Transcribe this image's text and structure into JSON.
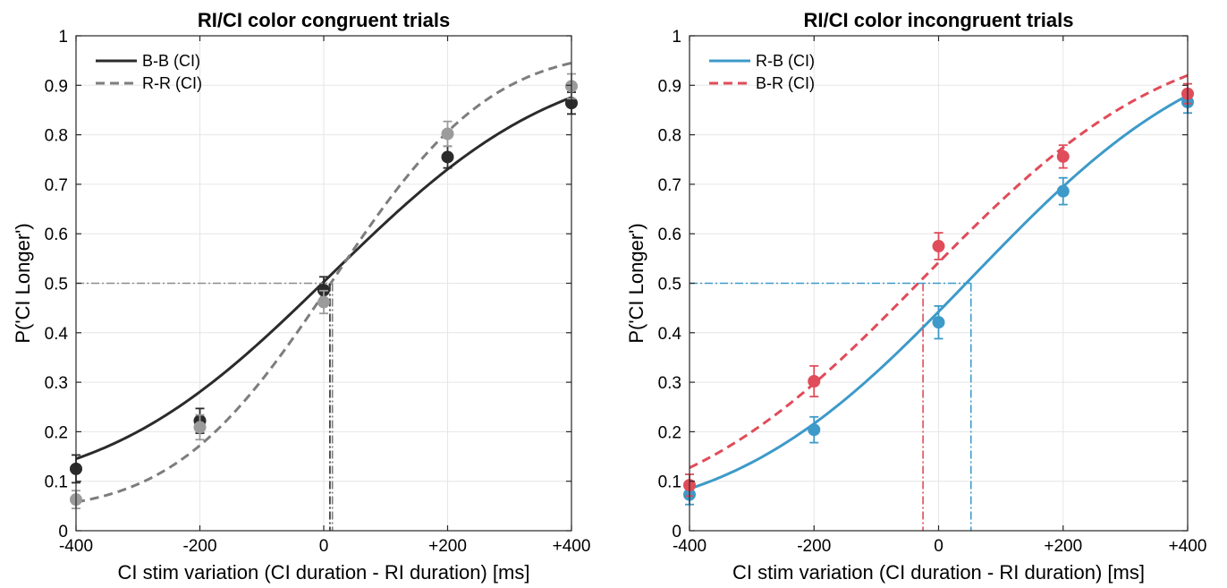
{
  "chart_data": [
    {
      "type": "scatter",
      "title": "RI/CI color congruent trials",
      "xlabel": "CI stim variation (CI duration - RI duration) [ms]",
      "ylabel": "P('CI Longer')",
      "xlim": [
        -400,
        400
      ],
      "ylim": [
        0,
        1
      ],
      "xticks": [
        -400,
        -200,
        0,
        200,
        400
      ],
      "xticklabels": [
        "-400",
        "-200",
        "0",
        "+200",
        "+400"
      ],
      "yticks": [
        0,
        0.1,
        0.2,
        0.3,
        0.4,
        0.5,
        0.6,
        0.7,
        0.8,
        0.9,
        1
      ],
      "yticklabels": [
        "0",
        "0.1",
        "0.2",
        "0.3",
        "0.4",
        "0.5",
        "0.6",
        "0.7",
        "0.8",
        "0.9",
        "1"
      ],
      "grid": true,
      "legend_position": "top-left",
      "pse_line": {
        "y": 0.5,
        "x_left": -400
      },
      "series": [
        {
          "name": "B-B (CI)",
          "color": "#2b2b2b",
          "dash": "solid",
          "x": [
            -400,
            -200,
            0,
            200,
            400
          ],
          "y": [
            0.125,
            0.222,
            0.486,
            0.755,
            0.864
          ],
          "err": [
            0.028,
            0.025,
            0.027,
            0.022,
            0.022
          ],
          "fit": {
            "mu": 10,
            "sigma": 285,
            "floor": 0.08,
            "ceiling": 0.95
          }
        },
        {
          "name": "R-R (CI)",
          "color": "#9b9b9b",
          "fit_color": "#7d7d7d",
          "dash": "dashed",
          "x": [
            -400,
            -200,
            0,
            200,
            400
          ],
          "y": [
            0.063,
            0.209,
            0.462,
            0.802,
            0.898
          ],
          "err": [
            0.018,
            0.025,
            0.023,
            0.025,
            0.025
          ],
          "fit": {
            "mu": 14,
            "sigma": 200,
            "floor": 0.04,
            "ceiling": 0.97
          }
        }
      ]
    },
    {
      "type": "scatter",
      "title": "RI/CI color incongruent trials",
      "xlabel": "CI stim variation (CI duration - RI duration) [ms]",
      "ylabel": "P('CI Longer')",
      "xlim": [
        -400,
        400
      ],
      "ylim": [
        0,
        1
      ],
      "xticks": [
        -400,
        -200,
        0,
        200,
        400
      ],
      "xticklabels": [
        "-400",
        "-200",
        "0",
        "+200",
        "+400"
      ],
      "yticks": [
        0,
        0.1,
        0.2,
        0.3,
        0.4,
        0.5,
        0.6,
        0.7,
        0.8,
        0.9,
        1
      ],
      "yticklabels": [
        "0",
        "0.1",
        "0.2",
        "0.3",
        "0.4",
        "0.5",
        "0.6",
        "0.7",
        "0.8",
        "0.9",
        "1"
      ],
      "grid": true,
      "legend_position": "top-left",
      "pse_line": {
        "y": 0.5,
        "x_left": -400
      },
      "series": [
        {
          "name": "R-B (CI)",
          "color": "#3d9ac9",
          "dash": "solid",
          "x": [
            -400,
            -200,
            0,
            200,
            400
          ],
          "y": [
            0.073,
            0.204,
            0.421,
            0.686,
            0.866
          ],
          "err": [
            0.02,
            0.026,
            0.033,
            0.027,
            0.022
          ],
          "fit": {
            "mu": 52,
            "sigma": 300,
            "floor": 0.02,
            "ceiling": 1.0
          }
        },
        {
          "name": "B-R (CI)",
          "color": "#e04c5a",
          "dash": "dashed",
          "x": [
            -400,
            -200,
            0,
            200,
            400
          ],
          "y": [
            0.092,
            0.302,
            0.575,
            0.756,
            0.883
          ],
          "err": [
            0.022,
            0.031,
            0.027,
            0.023,
            0.02
          ],
          "fit": {
            "mu": -25,
            "sigma": 305,
            "floor": 0.02,
            "ceiling": 1.0
          }
        }
      ]
    }
  ]
}
